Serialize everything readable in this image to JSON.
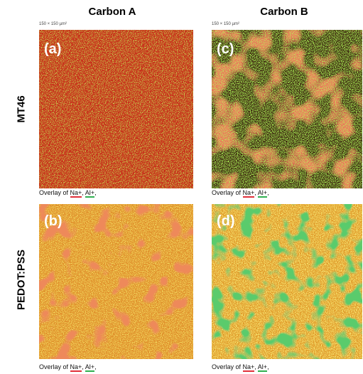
{
  "columns": [
    "Carbon A",
    "Carbon B"
  ],
  "rows": [
    "MT46",
    "PEDOT:PSS"
  ],
  "panels": [
    {
      "label": "(a)",
      "scale": "150 × 150 µm²",
      "caption": [
        "Overlay of ",
        "Na+",
        ", ",
        "Al+",
        ","
      ]
    },
    {
      "label": "(b)",
      "caption": [
        "Overlay of ",
        "Na+",
        ", ",
        "Al+",
        ","
      ]
    },
    {
      "label": "(c)",
      "scale": "150 × 150 µm²",
      "caption": [
        "Overlay of ",
        "Na+",
        ", ",
        "Al+",
        ","
      ]
    },
    {
      "label": "(d)",
      "caption": [
        "Overlay of ",
        "Na+",
        ", ",
        "Al+",
        ","
      ]
    }
  ]
}
